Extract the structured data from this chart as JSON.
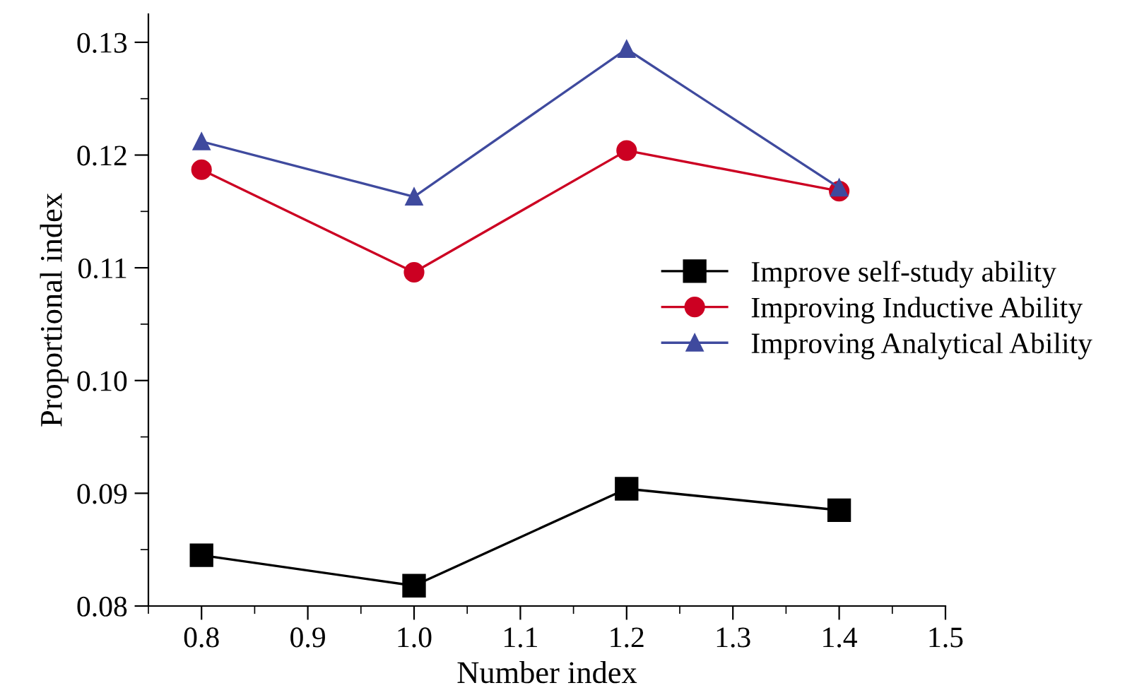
{
  "chart_data": {
    "type": "line",
    "xlabel": "Number index",
    "ylabel": "Proportional index",
    "x": [
      0.8,
      1.0,
      1.2,
      1.4
    ],
    "series": [
      {
        "name": "Improve self-study ability",
        "color": "#000000",
        "marker": "square",
        "values": [
          0.0845,
          0.0818,
          0.0904,
          0.0885
        ]
      },
      {
        "name": "Improving Inductive Ability",
        "color": "#cc0022",
        "marker": "circle",
        "values": [
          0.1187,
          0.1096,
          0.1204,
          0.1168
        ]
      },
      {
        "name": "Improving Analytical Ability",
        "color": "#3f4a9e",
        "marker": "triangle",
        "values": [
          0.1212,
          0.1163,
          0.1294,
          0.1171
        ]
      }
    ],
    "xlim": [
      0.75,
      1.5
    ],
    "xticks": [
      0.8,
      0.9,
      {
        "value": 1.0,
        "label": "1.0"
      },
      1.1,
      1.2,
      1.3,
      1.4,
      1.5
    ],
    "ylim": [
      0.08,
      0.1325
    ],
    "yticks": [
      {
        "value": 0.08,
        "label": "0.08"
      },
      {
        "value": 0.09,
        "label": "0.09"
      },
      {
        "value": 0.1,
        "label": "0.10"
      },
      {
        "value": 0.11,
        "label": "0.11"
      },
      {
        "value": 0.12,
        "label": "0.12"
      },
      {
        "value": 0.13,
        "label": "0.13"
      }
    ],
    "grid": false,
    "legend": "right",
    "line_style": "solid"
  }
}
